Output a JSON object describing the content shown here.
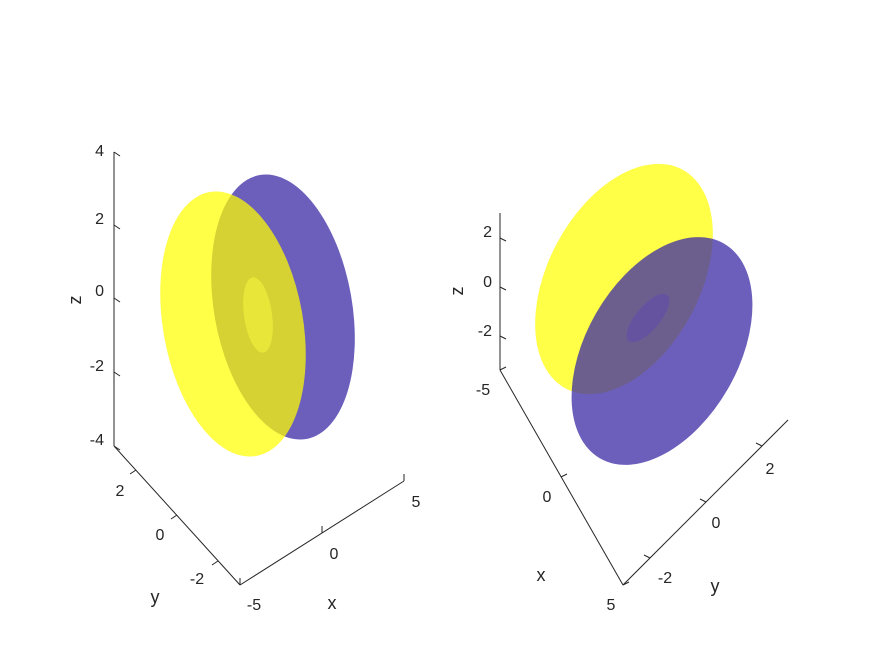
{
  "figure": {
    "background": "#ffffff",
    "colors": {
      "yellow": "#ffff00",
      "purple": "#3b2aa6",
      "axis": "#262626"
    },
    "surface_opacity": 0.75
  },
  "chart_data": [
    {
      "type": "surface3d",
      "title": "",
      "xlabel": "x",
      "ylabel": "y",
      "zlabel": "z",
      "xlim": [
        -5,
        5
      ],
      "ylim": [
        -3,
        3
      ],
      "zlim": [
        -4,
        4
      ],
      "xticks": [
        "-5",
        "0",
        "5"
      ],
      "yticks": [
        "-2",
        "0",
        "2"
      ],
      "zticks": [
        "-4",
        "-2",
        "0",
        "2",
        "4"
      ],
      "series": [
        {
          "color": "#ffff00",
          "shape": "ellipsoid-disk",
          "center": [
            0,
            0,
            0
          ]
        },
        {
          "color": "#3b2aa6",
          "shape": "ellipsoid-disk",
          "center": [
            0,
            0,
            0
          ]
        }
      ]
    },
    {
      "type": "surface3d",
      "title": "",
      "xlabel": "x",
      "ylabel": "y",
      "zlabel": "z",
      "xlim": [
        -5,
        5
      ],
      "ylim": [
        -3,
        3
      ],
      "zlim": [
        -3,
        3
      ],
      "xticks": [
        "-5",
        "0",
        "5"
      ],
      "yticks": [
        "-2",
        "0",
        "2"
      ],
      "zticks": [
        "-2",
        "0",
        "2"
      ],
      "series": [
        {
          "color": "#ffff00",
          "shape": "ellipsoid-disk",
          "center": [
            0,
            0,
            0
          ]
        },
        {
          "color": "#3b2aa6",
          "shape": "ellipsoid-disk",
          "center": [
            0,
            0,
            0
          ]
        }
      ]
    }
  ]
}
